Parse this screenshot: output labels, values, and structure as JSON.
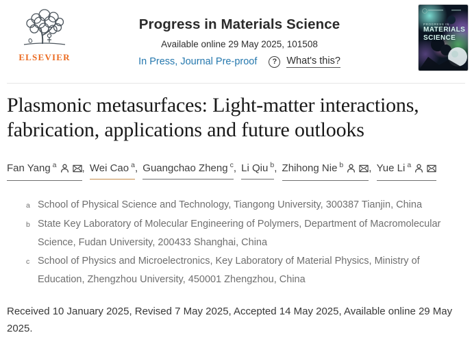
{
  "header": {
    "publisher_wordmark": "ELSEVIER",
    "journal_title": "Progress in Materials Science",
    "availability": "Available online 29 May 2025, 101508",
    "status_link": "In Press, Journal Pre-proof",
    "help_icon": "?",
    "whats_this_link": "What's this?",
    "cover": {
      "line1": "PROGRESS IN",
      "line2": "MATERIALS",
      "line3": "SCIENCE"
    }
  },
  "article": {
    "title": "Plasmonic metasurfaces: Light-matter interactions, fabrication, applications and future outlooks",
    "authors": [
      {
        "name": "Fan Yang",
        "sup": "a",
        "person": true,
        "email": true,
        "highlight": false
      },
      {
        "name": "Wei Cao",
        "sup": "a",
        "person": false,
        "email": false,
        "highlight": true
      },
      {
        "name": "Guangchao Zheng",
        "sup": "c",
        "person": false,
        "email": false,
        "highlight": false
      },
      {
        "name": "Li Qiu",
        "sup": "b",
        "person": false,
        "email": false,
        "highlight": false
      },
      {
        "name": "Zhihong Nie",
        "sup": "b",
        "person": true,
        "email": true,
        "highlight": false
      },
      {
        "name": "Yue Li",
        "sup": "a",
        "person": true,
        "email": true,
        "highlight": false
      }
    ],
    "affiliations": [
      {
        "sup": "a",
        "text": "School of Physical Science and Technology, Tiangong University, 300387 Tianjin, China"
      },
      {
        "sup": "b",
        "text": "State Key Laboratory of Molecular Engineering of Polymers, Department of Macromolecular Science, Fudan University, 200433 Shanghai, China"
      },
      {
        "sup": "c",
        "text": "School of Physics and Microelectronics, Key Laboratory of Material Physics, Ministry of Education, Zhengzhou University, 450001 Zhengzhou, China"
      }
    ],
    "dates": "Received 10 January 2025, Revised 7 May 2025, Accepted 14 May 2025, Available online 29 May 2025."
  },
  "colors": {
    "elsevier_orange": "#eb6a20",
    "link_blue": "#2578ae",
    "title_dark": "#191919",
    "text_gray": "#6f6f6f",
    "author_underline": "#6e6e6e",
    "author_underline_highlight": "#c38a4a"
  }
}
